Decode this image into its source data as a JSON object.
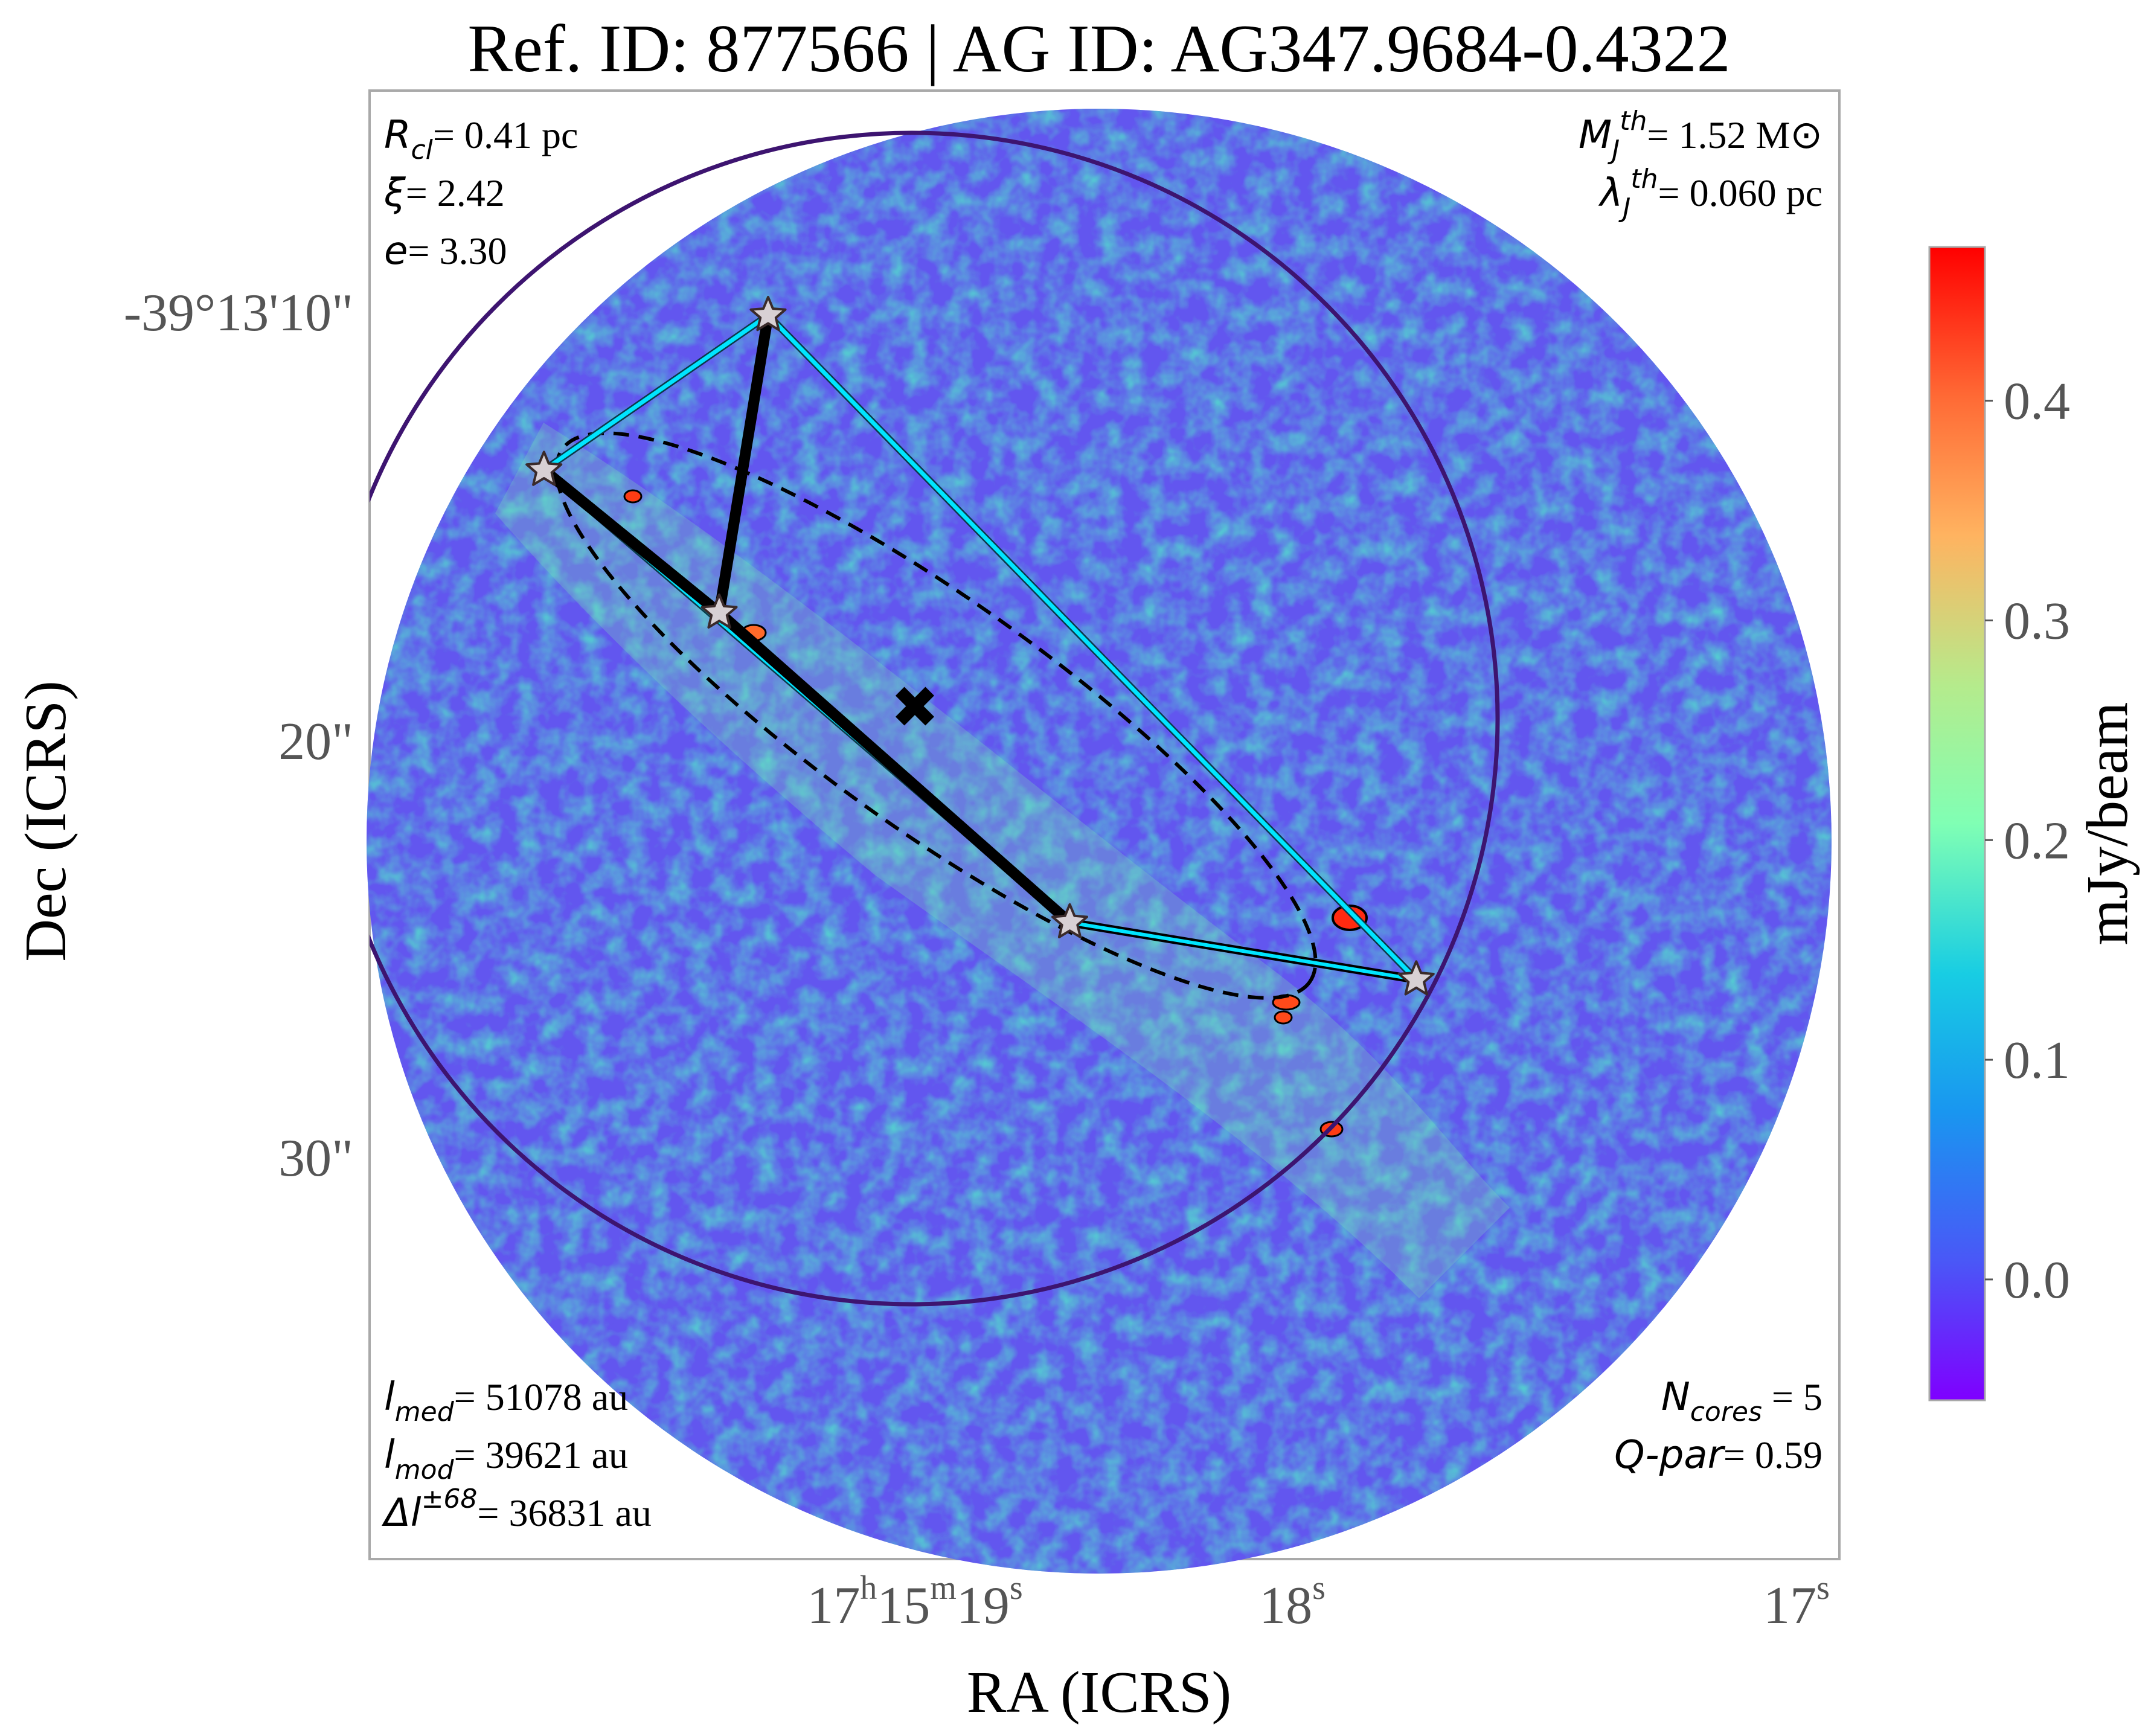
{
  "chart_data": {
    "type": "heatmap",
    "title": "Ref. ID: 877566 | AG ID: AG347.9684-0.4322",
    "xlabel": "RA (ICRS)",
    "ylabel": "Dec (ICRS)",
    "x_ticks": [
      {
        "h": "17",
        "m": "15",
        "s": "19"
      },
      {
        "s": "18"
      },
      {
        "s": "17"
      }
    ],
    "y_ticks": [
      "-39°13'10\"",
      "20\"",
      "30\""
    ],
    "colorbar": {
      "label": "mJy/beam",
      "ticks": [
        "0.0",
        "0.1",
        "0.2",
        "0.3",
        "0.4"
      ],
      "range": [
        -0.055,
        0.47
      ],
      "colormap": "rainbow"
    },
    "annotations_top_left": [
      {
        "sym": "R",
        "sub": "cl",
        "sup": "",
        "value": "= 0.41 pc"
      },
      {
        "sym": "ξ",
        "sub": "",
        "sup": "",
        "value": "= 2.42"
      },
      {
        "sym": "e",
        "sub": "",
        "sup": "",
        "value": "= 3.30"
      }
    ],
    "annotations_top_right": [
      {
        "sym": "M",
        "sub": "J",
        "sup": "th",
        "value": "= 1.52 M⊙"
      },
      {
        "sym": "λ",
        "sub": "J",
        "sup": "th",
        "value": "= 0.060 pc"
      }
    ],
    "annotations_bottom_left": [
      {
        "sym": "l",
        "sub": "med",
        "sup": "",
        "value": "= 51078 au"
      },
      {
        "sym": "l",
        "sub": "mod",
        "sup": "",
        "value": "= 39621 au"
      },
      {
        "sym": "Δl",
        "sub": "",
        "sup": "±68",
        "value": "= 36831 au"
      }
    ],
    "annotations_bottom_right": [
      {
        "sym": "N",
        "sub": "cores",
        "sup": "",
        "value": " = 5"
      },
      {
        "sym": "Q-par",
        "sub": "",
        "sup": "",
        "value": "= 0.59"
      }
    ],
    "cores": [
      {
        "ra_offset_arcsec": -3.6,
        "dec_offset_arcsec": -9.6
      },
      {
        "ra_offset_arcsec": -9.1,
        "dec_offset_arcsec": -5.8
      },
      {
        "ra_offset_arcsec": -4.8,
        "dec_offset_arcsec": -2.3
      },
      {
        "ra_offset_arcsec": 3.8,
        "dec_offset_arcsec": 5.3
      },
      {
        "ra_offset_arcsec": 12.3,
        "dec_offset_arcsec": 6.7
      }
    ],
    "mst_edges": [
      [
        0,
        2
      ],
      [
        1,
        2
      ],
      [
        2,
        3
      ],
      [
        3,
        4
      ]
    ],
    "convex_hull": [
      0,
      4,
      3,
      1
    ],
    "center_marker": {
      "ra_offset_arcsec": 0.0,
      "dec_offset_arcsec": 0.0
    },
    "colors": {
      "mst": "#000000",
      "hull": "#00e5ff",
      "cluster_circle": "#3d1470",
      "cluster_ellipse": "#000000",
      "star_fill": "#d8d0d4"
    }
  }
}
